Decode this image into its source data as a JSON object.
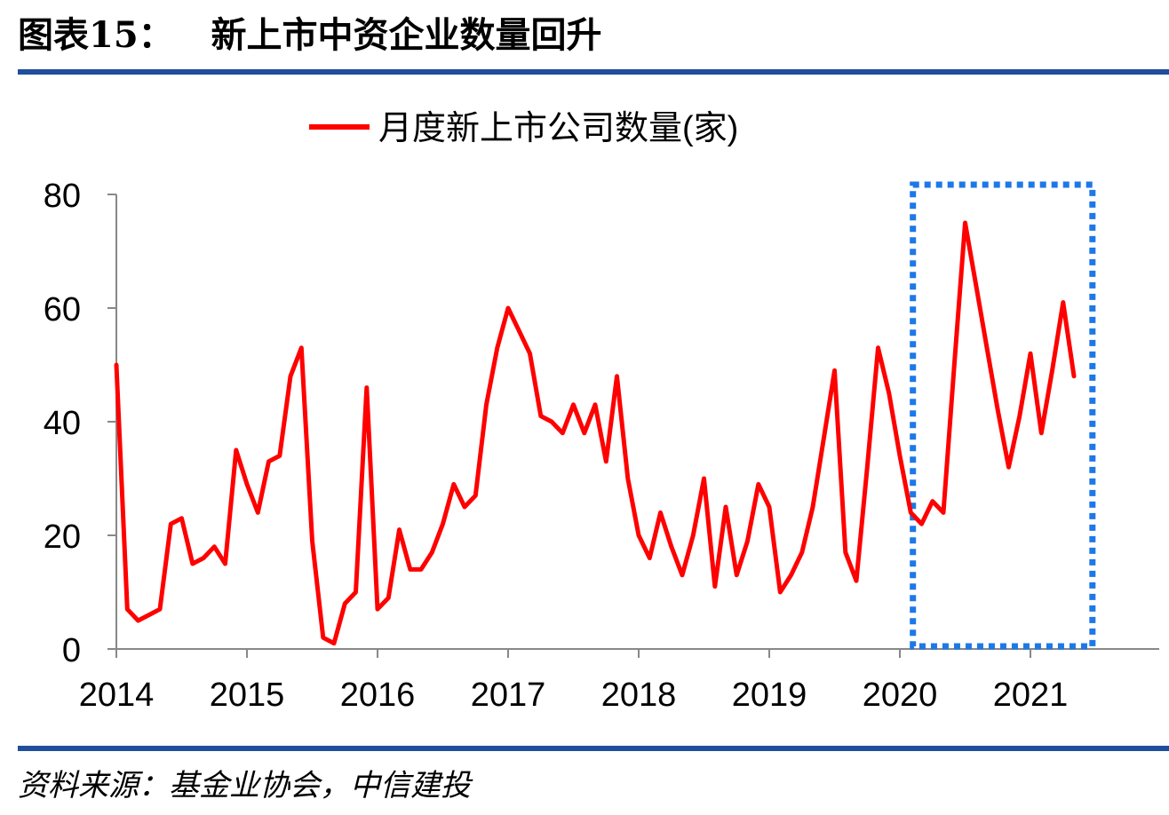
{
  "header": {
    "title": "图表15：   新上市中资企业数量回升"
  },
  "footer": {
    "source": "资料来源：基金业协会，中信建投"
  },
  "colors": {
    "rule": "#1f4e9c",
    "series_line": "#ff0000",
    "highlight_box": "#1e78e6",
    "text": "#000000",
    "axis": "#888888"
  },
  "chart_data": {
    "type": "line",
    "title": "",
    "legend_position": "top",
    "xlabel": "",
    "ylabel": "",
    "ylim": [
      0,
      80
    ],
    "yticks": [
      0,
      20,
      40,
      60,
      80
    ],
    "xticks": [
      "2014",
      "2015",
      "2016",
      "2017",
      "2018",
      "2019",
      "2020",
      "2021"
    ],
    "grid": false,
    "series": [
      {
        "name": "月度新上市公司数量(家)",
        "x_start": "2014-01",
        "frequency": "monthly",
        "values": [
          50,
          7,
          5,
          6,
          7,
          22,
          23,
          15,
          16,
          18,
          15,
          35,
          29,
          24,
          33,
          34,
          48,
          53,
          19,
          2,
          1,
          8,
          10,
          46,
          7,
          9,
          21,
          14,
          14,
          17,
          22,
          29,
          25,
          27,
          43,
          53,
          60,
          56,
          52,
          41,
          40,
          38,
          43,
          38,
          43,
          33,
          48,
          30,
          20,
          16,
          24,
          18,
          13,
          20,
          30,
          11,
          25,
          13,
          19,
          29,
          25,
          10,
          13,
          17,
          25,
          37,
          49,
          17,
          12,
          32,
          53,
          45,
          34,
          24,
          22,
          26,
          24,
          50,
          75,
          64,
          53,
          42,
          32,
          41,
          52,
          38,
          49,
          61,
          48
        ]
      }
    ],
    "highlight": {
      "from": "2020-03",
      "to": "2021-05",
      "style": "dotted-box"
    }
  }
}
